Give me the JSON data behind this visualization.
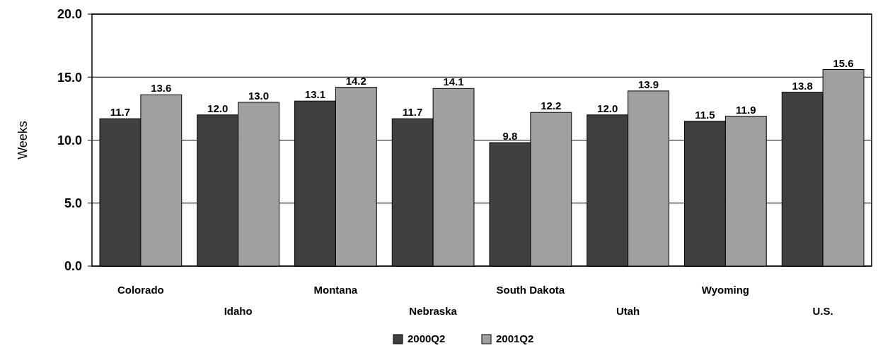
{
  "chart_data": {
    "type": "bar",
    "ylabel": "Weeks",
    "categories": [
      "Colorado",
      "Idaho",
      "Montana",
      "Nebraska",
      "South Dakota",
      "Utah",
      "Wyoming",
      "U.S."
    ],
    "series": [
      {
        "name": "2000Q2",
        "color": "#404040",
        "values": [
          11.7,
          12.0,
          13.1,
          11.7,
          9.8,
          12.0,
          11.5,
          13.8
        ],
        "value_labels": [
          "11.7",
          "12.0",
          "13.1",
          "11.7",
          "9.8",
          "12.0",
          "11.5",
          "13.8"
        ]
      },
      {
        "name": "2001Q2",
        "color": "#a0a0a0",
        "values": [
          13.6,
          13.0,
          14.2,
          14.1,
          12.2,
          13.9,
          11.9,
          15.6
        ],
        "value_labels": [
          "13.6",
          "13.0",
          "14.2",
          "14.1",
          "12.2",
          "13.9",
          "11.9",
          "15.6"
        ]
      }
    ],
    "ylim": [
      0,
      20
    ],
    "yticks": [
      {
        "value": 0,
        "label": "0.0"
      },
      {
        "value": 5,
        "label": "5.0"
      },
      {
        "value": 10,
        "label": "10.0"
      },
      {
        "value": 15,
        "label": "15.0"
      },
      {
        "value": 20,
        "label": "20.0"
      }
    ],
    "grid": "y",
    "legend": "bottom"
  }
}
